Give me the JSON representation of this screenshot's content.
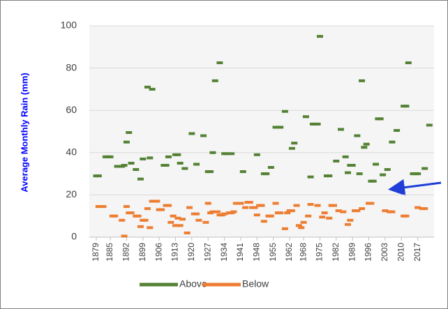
{
  "chart_data": {
    "type": "scatter",
    "ylabel": "Average Monthly Rain (mm)",
    "xlim": [
      1876,
      2024
    ],
    "xticks": [
      1879,
      1885,
      1892,
      1899,
      1906,
      1913,
      1920,
      1927,
      1934,
      1941,
      1948,
      1955,
      1962,
      1968,
      1975,
      1982,
      1989,
      1996,
      2003,
      2010,
      2017
    ],
    "ylim": [
      0,
      100
    ],
    "yticks": [
      0,
      20,
      40,
      60,
      80,
      100
    ],
    "grid": true,
    "legend": "bottom",
    "series": [
      {
        "name": "Above",
        "color": "#548235",
        "x": [
          1879,
          1880,
          1883,
          1884,
          1885,
          1888,
          1889,
          1890,
          1891,
          1892,
          1893,
          1894,
          1896,
          1898,
          1899,
          1901,
          1902,
          1903,
          1908,
          1909,
          1910,
          1913,
          1914,
          1915,
          1917,
          1920,
          1922,
          1925,
          1927,
          1928,
          1929,
          1930,
          1932,
          1934,
          1935,
          1937,
          1942,
          1948,
          1951,
          1952,
          1954,
          1956,
          1957,
          1958,
          1960,
          1963,
          1964,
          1969,
          1971,
          1972,
          1973,
          1974,
          1975,
          1978,
          1979,
          1982,
          1984,
          1986,
          1987,
          1988,
          1989,
          1991,
          1992,
          1993,
          1994,
          1995,
          1997,
          1998,
          1999,
          2000,
          2001,
          2002,
          2004,
          2006,
          2008,
          2011,
          2012,
          2013,
          2015,
          2016,
          2017,
          2020,
          2022
        ],
        "values": [
          29,
          29,
          38,
          38,
          38,
          33.5,
          33.5,
          33.5,
          34,
          45,
          49.5,
          35,
          32,
          27.5,
          37,
          71,
          37.5,
          70,
          34,
          34,
          38,
          39,
          39,
          35,
          32.5,
          49,
          34.5,
          48,
          31,
          31,
          40,
          74,
          82.5,
          39.5,
          39.5,
          39.5,
          31,
          39,
          30,
          30,
          33,
          52,
          52,
          52,
          59.5,
          42,
          44.5,
          57,
          28.5,
          53.5,
          53.5,
          53.5,
          95,
          29,
          29,
          36,
          51,
          38,
          30.5,
          34,
          34,
          48,
          30,
          74,
          42.5,
          44,
          26.5,
          26.5,
          34.5,
          56,
          56,
          29.5,
          32,
          45,
          50.5,
          62,
          62,
          82.5,
          30,
          30,
          30,
          32.5,
          53
        ]
      },
      {
        "name": "Below",
        "color": "#ed7d31",
        "x": [
          1880,
          1881,
          1882,
          1886,
          1887,
          1890,
          1891,
          1892,
          1893,
          1894,
          1896,
          1897,
          1898,
          1899,
          1900,
          1901,
          1902,
          1903,
          1904,
          1905,
          1906,
          1907,
          1909,
          1910,
          1911,
          1912,
          1913,
          1914,
          1915,
          1916,
          1918,
          1919,
          1921,
          1922,
          1923,
          1926,
          1927,
          1928,
          1929,
          1931,
          1932,
          1933,
          1934,
          1936,
          1937,
          1938,
          1939,
          1940,
          1941,
          1943,
          1944,
          1945,
          1946,
          1947,
          1948,
          1949,
          1950,
          1951,
          1953,
          1954,
          1956,
          1957,
          1958,
          1960,
          1961,
          1962,
          1963,
          1965,
          1966,
          1967,
          1968,
          1970,
          1971,
          1974,
          1976,
          1977,
          1979,
          1980,
          1981,
          1983,
          1985,
          1987,
          1988,
          1990,
          1991,
          1993,
          1996,
          1997,
          2003,
          2005,
          2006,
          2011,
          2012,
          2017,
          2019,
          2020
        ],
        "values": [
          14.5,
          14.5,
          14.5,
          10,
          10,
          8,
          0.5,
          14.5,
          11.5,
          11.5,
          10,
          10,
          5,
          8,
          8,
          13.5,
          4.5,
          17,
          17,
          17,
          13,
          13,
          15,
          15,
          7,
          10,
          5.5,
          9,
          5.5,
          8.5,
          2,
          14,
          11,
          11,
          8,
          7,
          16,
          11.5,
          12,
          12,
          10.5,
          10.5,
          11,
          11.5,
          11.5,
          12,
          16,
          16,
          16,
          14,
          16.5,
          16.5,
          14,
          14,
          10.5,
          15,
          15,
          7.5,
          10,
          10,
          16,
          11.5,
          11.5,
          4,
          11.5,
          12.5,
          12.5,
          15,
          5.5,
          4.5,
          7,
          10,
          15.5,
          15,
          9.5,
          11.5,
          9,
          15,
          15,
          12.5,
          12,
          6,
          8,
          12.5,
          12.5,
          13.5,
          16,
          16,
          12.5,
          12,
          12,
          10,
          10,
          14,
          13.5,
          13.5
        ]
      }
    ]
  }
}
